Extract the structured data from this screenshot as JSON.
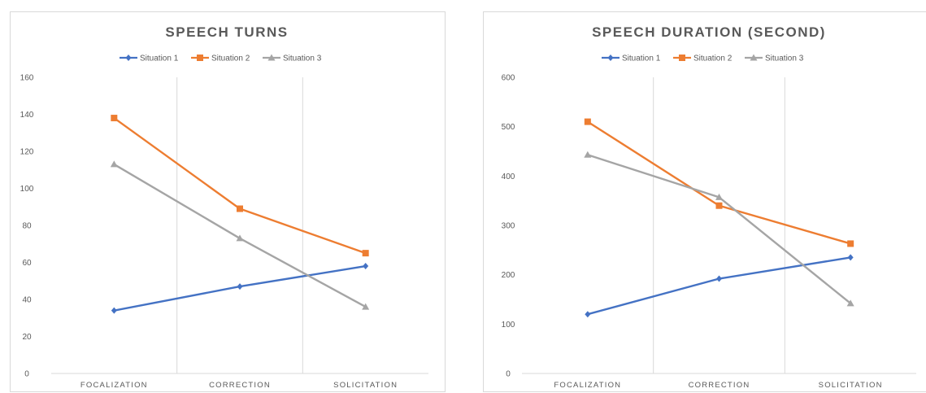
{
  "chart_data": [
    {
      "type": "line",
      "title": "SPEECH TURNS",
      "categories": [
        "FOCALIZATION",
        "CORRECTION",
        "SOLICITATION"
      ],
      "ylim": [
        0,
        160
      ],
      "yticks": [
        0,
        20,
        40,
        60,
        80,
        100,
        120,
        140,
        160
      ],
      "legend_position": "top-center",
      "gridlines": "vertical category separators",
      "series": [
        {
          "name": "Situation 1",
          "values": [
            34,
            47,
            58
          ],
          "color": "#4472c4",
          "marker": "diamond"
        },
        {
          "name": "Situation 2",
          "values": [
            138,
            89,
            65
          ],
          "color": "#ed7d31",
          "marker": "square"
        },
        {
          "name": "Situation 3",
          "values": [
            113,
            73,
            36
          ],
          "color": "#a5a5a5",
          "marker": "triangle"
        }
      ]
    },
    {
      "type": "line",
      "title": "SPEECH DURATION (SECOND)",
      "categories": [
        "FOCALIZATION",
        "CORRECTION",
        "SOLICITATION"
      ],
      "ylim": [
        0,
        600
      ],
      "yticks": [
        0,
        100,
        200,
        300,
        400,
        500,
        600
      ],
      "legend_position": "top-center",
      "gridlines": "vertical category separators",
      "series": [
        {
          "name": "Situation 1",
          "values": [
            120,
            192,
            235
          ],
          "color": "#4472c4",
          "marker": "diamond"
        },
        {
          "name": "Situation 2",
          "values": [
            510,
            340,
            263
          ],
          "color": "#ed7d31",
          "marker": "square"
        },
        {
          "name": "Situation 3",
          "values": [
            443,
            357,
            142
          ],
          "color": "#a5a5a5",
          "marker": "triangle"
        }
      ]
    }
  ]
}
